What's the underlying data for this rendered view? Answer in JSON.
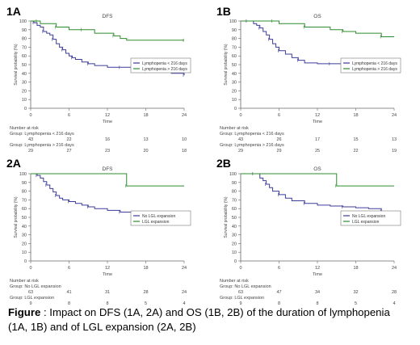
{
  "figure_caption": {
    "label": "Figure",
    "text": " : Impact on DFS (1A, 2A) and OS (1B, 2B) of the duration of lymphopenia (1A, 1B) and of LGL expansion (2A, 2B)"
  },
  "colors": {
    "group1": "#3c3c9a",
    "group2": "#2e8b2e"
  },
  "chart_data": [
    {
      "id": "1A",
      "type": "line",
      "title": "DFS",
      "xlabel": "Time",
      "ylabel": "Survival probability (%)",
      "xlim": [
        0,
        24
      ],
      "ylim": [
        0,
        100
      ],
      "xticks": [
        0,
        6,
        12,
        18,
        24
      ],
      "yticks": [
        0,
        10,
        20,
        30,
        40,
        50,
        60,
        70,
        80,
        90,
        100
      ],
      "grid": false,
      "legend_position": "right",
      "series": [
        {
          "name": "Lymphopenia < 216 days",
          "color": "#3c3c9a",
          "x": [
            0,
            0.5,
            1,
            1.5,
            2,
            2.5,
            3,
            3.5,
            4,
            4.5,
            5,
            5.5,
            6,
            6.5,
            7,
            8,
            9,
            10,
            12,
            14,
            16,
            17,
            18,
            20,
            22,
            24
          ],
          "y": [
            100,
            98,
            95,
            93,
            88,
            86,
            84,
            79,
            74,
            70,
            67,
            63,
            60,
            58,
            56,
            53,
            51,
            49,
            47,
            47,
            44,
            44,
            42,
            42,
            40,
            38
          ]
        },
        {
          "name": "Lymphopenia > 216 days",
          "color": "#2e8b2e",
          "x": [
            0,
            1,
            1.5,
            3,
            4,
            5,
            6,
            8,
            10,
            12,
            13,
            14,
            15,
            24
          ],
          "y": [
            100,
            100,
            97,
            97,
            93,
            93,
            90,
            90,
            86,
            86,
            83,
            80,
            78,
            78
          ]
        }
      ],
      "risk_table": {
        "heading": "Number at risk",
        "times": [
          0,
          6,
          12,
          18,
          24
        ],
        "groups": [
          {
            "label": "Group: Lymphopenia < 216 days",
            "values": [
              "43",
              "22",
              "16",
              "13",
              "10"
            ]
          },
          {
            "label": "Group: Lymphopenia > 216 days",
            "values": [
              "29",
              "27",
              "23",
              "20",
              "18"
            ]
          }
        ]
      }
    },
    {
      "id": "1B",
      "type": "line",
      "title": "OS",
      "xlabel": "Time",
      "ylabel": "Survival probability (%)",
      "xlim": [
        0,
        24
      ],
      "ylim": [
        0,
        100
      ],
      "xticks": [
        0,
        6,
        12,
        18,
        24
      ],
      "yticks": [
        0,
        10,
        20,
        30,
        40,
        50,
        60,
        70,
        80,
        90,
        100
      ],
      "grid": false,
      "legend_position": "right",
      "series": [
        {
          "name": "Lymphopenia < 216 days",
          "color": "#3c3c9a",
          "x": [
            0,
            1,
            2,
            2.5,
            3,
            3.5,
            4,
            4.5,
            5,
            5.5,
            6,
            7,
            8,
            9,
            10,
            12,
            14,
            16,
            18,
            20,
            22,
            24
          ],
          "y": [
            100,
            100,
            97,
            95,
            92,
            88,
            84,
            79,
            74,
            70,
            66,
            62,
            58,
            55,
            52,
            51,
            51,
            49,
            49,
            48,
            46,
            46
          ]
        },
        {
          "name": "Lymphopenia > 216 days",
          "color": "#2e8b2e",
          "x": [
            0,
            5,
            6,
            8,
            10,
            12,
            14,
            16,
            18,
            20,
            22,
            24
          ],
          "y": [
            100,
            100,
            97,
            97,
            93,
            93,
            90,
            88,
            86,
            86,
            82,
            82
          ]
        }
      ],
      "risk_table": {
        "heading": "Number at risk",
        "times": [
          0,
          6,
          12,
          18,
          24
        ],
        "groups": [
          {
            "label": "Group: Lymphopenia < 216 days",
            "values": [
              "43",
              "26",
              "17",
              "15",
              "13"
            ]
          },
          {
            "label": "Group: Lymphopenia > 216 days",
            "values": [
              "29",
              "29",
              "25",
              "22",
              "19"
            ]
          }
        ]
      }
    },
    {
      "id": "2A",
      "type": "line",
      "title": "DFS",
      "xlabel": "Time",
      "ylabel": "Survival probability (%)",
      "xlim": [
        0,
        24
      ],
      "ylim": [
        0,
        100
      ],
      "xticks": [
        0,
        6,
        12,
        18,
        24
      ],
      "yticks": [
        0,
        10,
        20,
        30,
        40,
        50,
        60,
        70,
        80,
        90,
        100
      ],
      "grid": false,
      "legend_position": "right",
      "series": [
        {
          "name": "No LGL expansion",
          "color": "#3c3c9a",
          "x": [
            0,
            1,
            1.5,
            2,
            2.5,
            3,
            3.5,
            4,
            4.5,
            5,
            6,
            7,
            8,
            9,
            10,
            12,
            14,
            16,
            18,
            20,
            22,
            24
          ],
          "y": [
            100,
            98,
            95,
            91,
            87,
            83,
            79,
            75,
            72,
            70,
            68,
            66,
            64,
            62,
            60,
            58,
            56,
            55,
            54,
            53,
            51,
            50
          ]
        },
        {
          "name": "LGL expansion",
          "color": "#2e8b2e",
          "x": [
            0,
            15,
            24
          ],
          "y": [
            100,
            86,
            86
          ]
        }
      ],
      "risk_table": {
        "heading": "Number at risk",
        "times": [
          0,
          6,
          12,
          18,
          24
        ],
        "groups": [
          {
            "label": "Group: No LGL expansion",
            "values": [
              "63",
              "41",
              "31",
              "28",
              "24"
            ]
          },
          {
            "label": "Group: LGL expansion",
            "values": [
              "9",
              "8",
              "8",
              "5",
              "4"
            ]
          }
        ]
      }
    },
    {
      "id": "2B",
      "type": "line",
      "title": "OS",
      "xlabel": "Time",
      "ylabel": "Survival probability (%)",
      "xlim": [
        0,
        24
      ],
      "ylim": [
        0,
        100
      ],
      "xticks": [
        0,
        6,
        12,
        18,
        24
      ],
      "yticks": [
        0,
        10,
        20,
        30,
        40,
        50,
        60,
        70,
        80,
        90,
        100
      ],
      "grid": false,
      "legend_position": "right",
      "series": [
        {
          "name": "No LGL expansion",
          "color": "#3c3c9a",
          "x": [
            0,
            2,
            3,
            3.5,
            4,
            4.5,
            5,
            6,
            7,
            8,
            10,
            12,
            14,
            16,
            18,
            20,
            22,
            24
          ],
          "y": [
            100,
            100,
            95,
            92,
            88,
            84,
            80,
            76,
            72,
            69,
            66,
            64,
            63,
            62,
            61,
            60,
            57,
            56
          ]
        },
        {
          "name": "LGL expansion",
          "color": "#2e8b2e",
          "x": [
            0,
            15,
            24
          ],
          "y": [
            100,
            86,
            86
          ]
        }
      ],
      "risk_table": {
        "heading": "Number at risk",
        "times": [
          0,
          6,
          12,
          18,
          24
        ],
        "groups": [
          {
            "label": "Group: No LGL expansion",
            "values": [
              "63",
              "47",
              "34",
              "32",
              "28"
            ]
          },
          {
            "label": "Group: LGL expansion",
            "values": [
              "9",
              "8",
              "8",
              "5",
              "4"
            ]
          }
        ]
      }
    }
  ]
}
